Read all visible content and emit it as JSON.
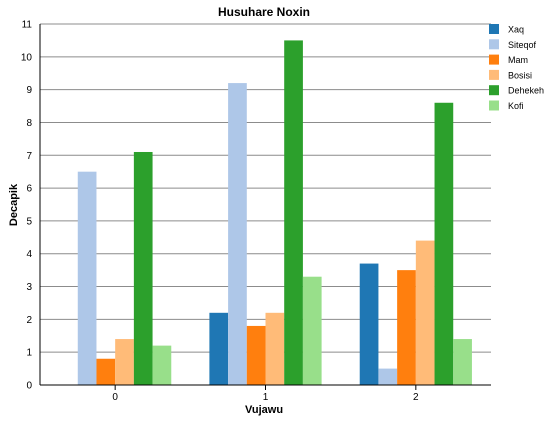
{
  "chart_data": {
    "type": "bar",
    "title": "Husuhare Noxin",
    "xlabel": "Vujawu",
    "ylabel": "Decapik",
    "categories": [
      "0",
      "1",
      "2"
    ],
    "ylim": [
      0,
      11
    ],
    "yticks": [
      0,
      1,
      2,
      3,
      4,
      5,
      6,
      7,
      8,
      9,
      10,
      11
    ],
    "grid": true,
    "legend_position": "top-right",
    "series": [
      {
        "name": "Xaq",
        "color": "#1f77b4",
        "values": [
          0,
          2.2,
          3.7
        ]
      },
      {
        "name": "Siteqof",
        "color": "#aec7e8",
        "values": [
          6.5,
          9.2,
          0.5
        ]
      },
      {
        "name": "Mam",
        "color": "#ff7f0e",
        "values": [
          0.8,
          1.8,
          3.5
        ]
      },
      {
        "name": "Bosisi",
        "color": "#ffbb78",
        "values": [
          1.4,
          2.2,
          4.4
        ]
      },
      {
        "name": "Dehekeh",
        "color": "#2ca02c",
        "values": [
          7.1,
          10.5,
          8.6
        ]
      },
      {
        "name": "Kofi",
        "color": "#98df8a",
        "values": [
          1.2,
          3.3,
          1.4
        ]
      }
    ]
  }
}
